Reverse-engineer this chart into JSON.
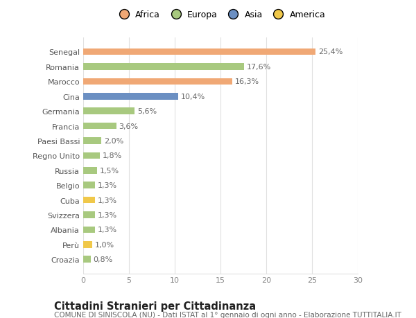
{
  "countries": [
    "Croazia",
    "Perù",
    "Albania",
    "Svizzera",
    "Cuba",
    "Belgio",
    "Russia",
    "Regno Unito",
    "Paesi Bassi",
    "Francia",
    "Germania",
    "Cina",
    "Marocco",
    "Romania",
    "Senegal"
  ],
  "values": [
    0.8,
    1.0,
    1.3,
    1.3,
    1.3,
    1.3,
    1.5,
    1.8,
    2.0,
    3.6,
    5.6,
    10.4,
    16.3,
    17.6,
    25.4
  ],
  "labels": [
    "0,8%",
    "1,0%",
    "1,3%",
    "1,3%",
    "1,3%",
    "1,3%",
    "1,5%",
    "1,8%",
    "2,0%",
    "3,6%",
    "5,6%",
    "10,4%",
    "16,3%",
    "17,6%",
    "25,4%"
  ],
  "colors": [
    "#a8c97f",
    "#f0c84a",
    "#a8c97f",
    "#a8c97f",
    "#f0c84a",
    "#a8c97f",
    "#a8c97f",
    "#a8c97f",
    "#a8c97f",
    "#a8c97f",
    "#a8c97f",
    "#6b8fc2",
    "#f0a875",
    "#a8c97f",
    "#f0a875"
  ],
  "legend_labels": [
    "Africa",
    "Europa",
    "Asia",
    "America"
  ],
  "legend_colors": [
    "#f0a875",
    "#a8c97f",
    "#6b8fc2",
    "#f0c84a"
  ],
  "title": "Cittadini Stranieri per Cittadinanza",
  "subtitle": "COMUNE DI SINISCOLA (NU) - Dati ISTAT al 1° gennaio di ogni anno - Elaborazione TUTTITALIA.IT",
  "xlim": [
    0,
    30
  ],
  "xticks": [
    0,
    5,
    10,
    15,
    20,
    25,
    30
  ],
  "background_color": "#ffffff",
  "grid_color": "#e0e0e0",
  "bar_height": 0.45,
  "label_fontsize": 8,
  "title_fontsize": 10.5,
  "subtitle_fontsize": 7.5,
  "tick_fontsize": 8
}
